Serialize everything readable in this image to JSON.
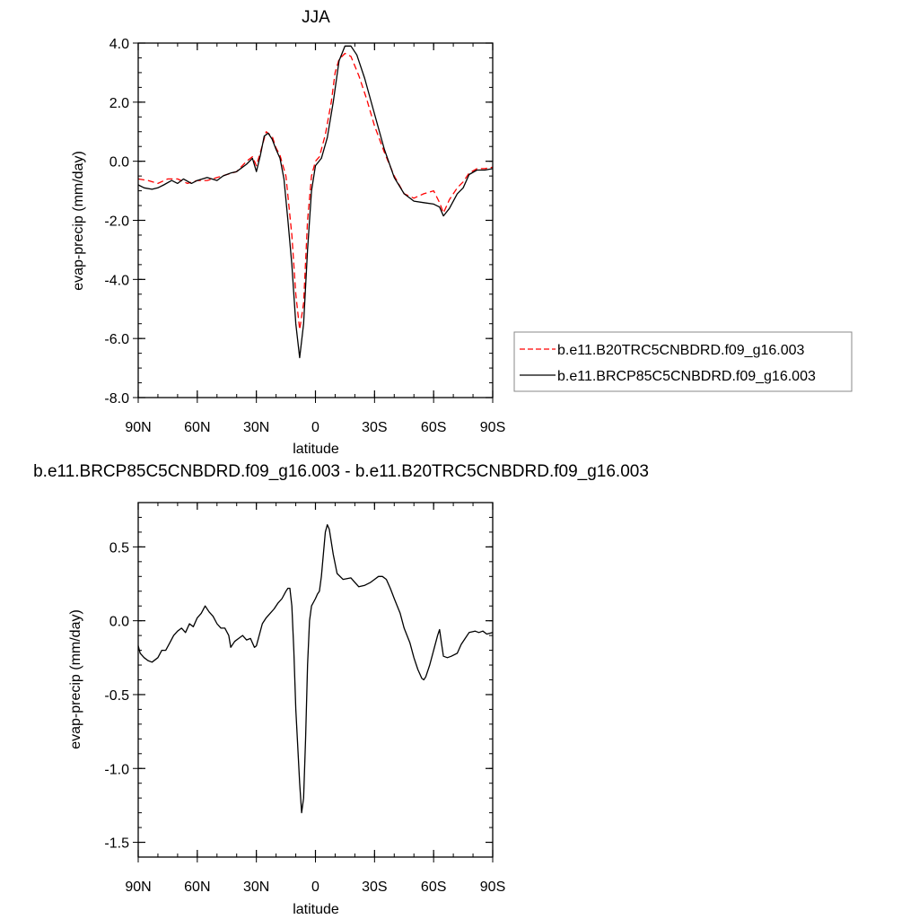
{
  "chart_data": [
    {
      "type": "line",
      "title": "JJA",
      "xlabel": "latitude",
      "ylabel": "evap-precip (mm/day)",
      "xlim": [
        90,
        -90
      ],
      "ylim": [
        -8,
        4
      ],
      "x_ticks": [
        90,
        60,
        30,
        0,
        -30,
        -60,
        -90
      ],
      "x_tick_labels": [
        "90N",
        "60N",
        "30N",
        "0",
        "30S",
        "60S",
        "90S"
      ],
      "y_ticks": [
        4,
        2,
        0,
        -2,
        -4,
        -6,
        -8
      ],
      "y_tick_labels": [
        "4.0",
        "2.0",
        "0.0",
        "-2.0",
        "-4.0",
        "-6.0",
        "-8.0"
      ],
      "legend_position": "right",
      "series": [
        {
          "name": "b.e11.B20TRC5CNBDRD.f09_g16.003",
          "color": "#ff0000",
          "dash": "dashed",
          "points": [
            [
              90,
              -0.6
            ],
            [
              85,
              -0.65
            ],
            [
              80,
              -0.75
            ],
            [
              75,
              -0.6
            ],
            [
              70,
              -0.6
            ],
            [
              65,
              -0.75
            ],
            [
              60,
              -0.65
            ],
            [
              55,
              -0.65
            ],
            [
              50,
              -0.55
            ],
            [
              45,
              -0.45
            ],
            [
              40,
              -0.35
            ],
            [
              35,
              0.0
            ],
            [
              32,
              0.15
            ],
            [
              30,
              -0.15
            ],
            [
              28,
              0.3
            ],
            [
              25,
              1.0
            ],
            [
              22,
              0.85
            ],
            [
              20,
              0.45
            ],
            [
              18,
              0.2
            ],
            [
              15,
              -0.5
            ],
            [
              12,
              -2.5
            ],
            [
              10,
              -4.5
            ],
            [
              8,
              -5.7
            ],
            [
              6,
              -4.8
            ],
            [
              4,
              -2.0
            ],
            [
              2,
              -0.5
            ],
            [
              0,
              0.0
            ],
            [
              -2,
              0.15
            ],
            [
              -5,
              0.9
            ],
            [
              -8,
              2.0
            ],
            [
              -10,
              3.0
            ],
            [
              -12,
              3.45
            ],
            [
              -15,
              3.65
            ],
            [
              -18,
              3.55
            ],
            [
              -22,
              2.9
            ],
            [
              -26,
              2.1
            ],
            [
              -30,
              1.2
            ],
            [
              -35,
              0.3
            ],
            [
              -40,
              -0.5
            ],
            [
              -45,
              -1.1
            ],
            [
              -50,
              -1.25
            ],
            [
              -55,
              -1.1
            ],
            [
              -60,
              -1.0
            ],
            [
              -63,
              -1.4
            ],
            [
              -65,
              -1.75
            ],
            [
              -68,
              -1.3
            ],
            [
              -72,
              -0.9
            ],
            [
              -75,
              -0.7
            ],
            [
              -78,
              -0.4
            ],
            [
              -82,
              -0.25
            ],
            [
              -86,
              -0.25
            ],
            [
              -90,
              -0.2
            ]
          ]
        },
        {
          "name": "b.e11.BRCP85C5CNBDRD.f09_g16.003",
          "color": "#000000",
          "dash": "solid",
          "points": [
            [
              90,
              -0.8
            ],
            [
              87,
              -0.9
            ],
            [
              83,
              -0.95
            ],
            [
              80,
              -0.9
            ],
            [
              77,
              -0.8
            ],
            [
              73,
              -0.65
            ],
            [
              70,
              -0.75
            ],
            [
              67,
              -0.6
            ],
            [
              63,
              -0.75
            ],
            [
              60,
              -0.65
            ],
            [
              55,
              -0.55
            ],
            [
              50,
              -0.65
            ],
            [
              47,
              -0.5
            ],
            [
              43,
              -0.4
            ],
            [
              40,
              -0.35
            ],
            [
              35,
              -0.1
            ],
            [
              32,
              0.1
            ],
            [
              30,
              -0.35
            ],
            [
              28,
              0.2
            ],
            [
              26,
              0.85
            ],
            [
              24,
              0.95
            ],
            [
              22,
              0.75
            ],
            [
              20,
              0.4
            ],
            [
              18,
              0.1
            ],
            [
              16,
              -0.6
            ],
            [
              14,
              -2.0
            ],
            [
              12,
              -3.5
            ],
            [
              10,
              -5.5
            ],
            [
              8,
              -6.65
            ],
            [
              6,
              -5.5
            ],
            [
              4,
              -3.0
            ],
            [
              2,
              -1.0
            ],
            [
              0,
              -0.15
            ],
            [
              -3,
              0.1
            ],
            [
              -6,
              0.8
            ],
            [
              -9,
              2.0
            ],
            [
              -12,
              3.4
            ],
            [
              -15,
              3.9
            ],
            [
              -18,
              3.9
            ],
            [
              -21,
              3.6
            ],
            [
              -25,
              2.8
            ],
            [
              -30,
              1.6
            ],
            [
              -35,
              0.4
            ],
            [
              -40,
              -0.55
            ],
            [
              -45,
              -1.1
            ],
            [
              -50,
              -1.35
            ],
            [
              -55,
              -1.4
            ],
            [
              -60,
              -1.45
            ],
            [
              -63,
              -1.55
            ],
            [
              -65,
              -1.85
            ],
            [
              -68,
              -1.6
            ],
            [
              -72,
              -1.1
            ],
            [
              -75,
              -0.9
            ],
            [
              -78,
              -0.45
            ],
            [
              -82,
              -0.3
            ],
            [
              -86,
              -0.3
            ],
            [
              -90,
              -0.25
            ]
          ]
        }
      ]
    },
    {
      "type": "line",
      "title": "b.e11.BRCP85C5CNBDRD.f09_g16.003 - b.e11.B20TRC5CNBDRD.f09_g16.003",
      "xlabel": "latitude",
      "ylabel": "evap-precip (mm/day)",
      "xlim": [
        90,
        -90
      ],
      "ylim": [
        -1.6,
        0.8
      ],
      "x_ticks": [
        90,
        60,
        30,
        0,
        -30,
        -60,
        -90
      ],
      "x_tick_labels": [
        "90N",
        "60N",
        "30N",
        "0",
        "30S",
        "60S",
        "90S"
      ],
      "y_ticks": [
        0.5,
        0.0,
        -0.5,
        -1.0,
        -1.5
      ],
      "y_tick_labels": [
        "0.5",
        "0.0",
        "-0.5",
        "-1.0",
        "-1.5"
      ],
      "series": [
        {
          "color": "#000000",
          "dash": "solid",
          "points": [
            [
              90,
              -0.17
            ],
            [
              89,
              -0.22
            ],
            [
              87,
              -0.25
            ],
            [
              85,
              -0.27
            ],
            [
              83,
              -0.28
            ],
            [
              80,
              -0.25
            ],
            [
              78,
              -0.2
            ],
            [
              76,
              -0.2
            ],
            [
              74,
              -0.15
            ],
            [
              72,
              -0.1
            ],
            [
              70,
              -0.07
            ],
            [
              68,
              -0.05
            ],
            [
              66,
              -0.08
            ],
            [
              64,
              -0.02
            ],
            [
              62,
              -0.04
            ],
            [
              60,
              0.02
            ],
            [
              58,
              0.05
            ],
            [
              56,
              0.1
            ],
            [
              54,
              0.06
            ],
            [
              52,
              0.03
            ],
            [
              50,
              -0.02
            ],
            [
              48,
              -0.05
            ],
            [
              46,
              -0.05
            ],
            [
              44,
              -0.1
            ],
            [
              43,
              -0.18
            ],
            [
              41,
              -0.14
            ],
            [
              39,
              -0.12
            ],
            [
              37,
              -0.1
            ],
            [
              35,
              -0.13
            ],
            [
              33,
              -0.12
            ],
            [
              31,
              -0.18
            ],
            [
              30,
              -0.17
            ],
            [
              29,
              -0.12
            ],
            [
              27,
              -0.02
            ],
            [
              25,
              0.02
            ],
            [
              23,
              0.05
            ],
            [
              21,
              0.08
            ],
            [
              19,
              0.12
            ],
            [
              17,
              0.15
            ],
            [
              15,
              0.2
            ],
            [
              14,
              0.22
            ],
            [
              13,
              0.22
            ],
            [
              12,
              0.1
            ],
            [
              11,
              -0.2
            ],
            [
              10,
              -0.6
            ],
            [
              8,
              -1.1
            ],
            [
              7,
              -1.3
            ],
            [
              6,
              -1.2
            ],
            [
              5,
              -0.8
            ],
            [
              4,
              -0.3
            ],
            [
              3,
              0.0
            ],
            [
              2,
              0.1
            ],
            [
              0,
              0.15
            ],
            [
              -1,
              0.18
            ],
            [
              -2,
              0.2
            ],
            [
              -3,
              0.3
            ],
            [
              -5,
              0.6
            ],
            [
              -6,
              0.65
            ],
            [
              -7,
              0.62
            ],
            [
              -9,
              0.45
            ],
            [
              -11,
              0.32
            ],
            [
              -14,
              0.28
            ],
            [
              -18,
              0.29
            ],
            [
              -20,
              0.26
            ],
            [
              -22,
              0.23
            ],
            [
              -25,
              0.24
            ],
            [
              -28,
              0.26
            ],
            [
              -30,
              0.28
            ],
            [
              -32,
              0.3
            ],
            [
              -34,
              0.3
            ],
            [
              -36,
              0.28
            ],
            [
              -38,
              0.22
            ],
            [
              -40,
              0.15
            ],
            [
              -43,
              0.05
            ],
            [
              -45,
              -0.05
            ],
            [
              -48,
              -0.15
            ],
            [
              -50,
              -0.25
            ],
            [
              -52,
              -0.33
            ],
            [
              -54,
              -0.39
            ],
            [
              -55,
              -0.4
            ],
            [
              -56,
              -0.38
            ],
            [
              -58,
              -0.3
            ],
            [
              -60,
              -0.2
            ],
            [
              -62,
              -0.1
            ],
            [
              -63,
              -0.06
            ],
            [
              -64,
              -0.15
            ],
            [
              -65,
              -0.24
            ],
            [
              -67,
              -0.25
            ],
            [
              -69,
              -0.24
            ],
            [
              -72,
              -0.22
            ],
            [
              -74,
              -0.16
            ],
            [
              -76,
              -0.12
            ],
            [
              -78,
              -0.08
            ],
            [
              -81,
              -0.07
            ],
            [
              -83,
              -0.08
            ],
            [
              -85,
              -0.07
            ],
            [
              -87,
              -0.09
            ],
            [
              -90,
              -0.08
            ]
          ]
        }
      ]
    }
  ]
}
